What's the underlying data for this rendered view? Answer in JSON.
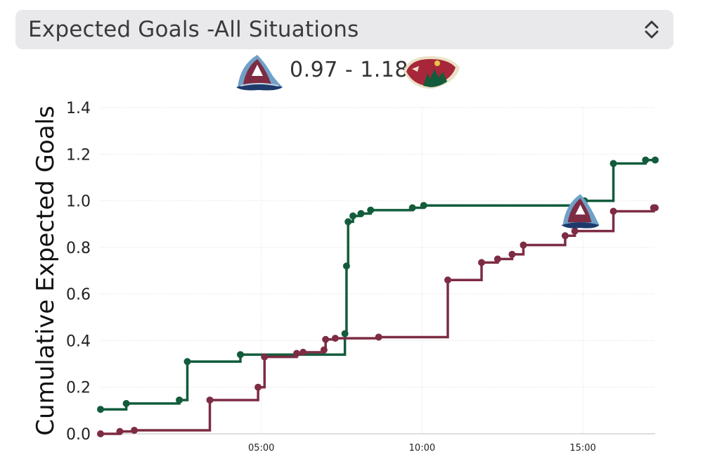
{
  "header": {
    "selector_label": "Expected Goals -All Situations"
  },
  "score": {
    "text": "0.97 - 1.18",
    "away_team": {
      "name": "Colorado Avalanche",
      "icon": "avalanche-logo-icon",
      "color": "#7d2c43"
    },
    "home_team": {
      "name": "Minnesota Wild",
      "icon": "wild-logo-icon",
      "color": "#125c3b"
    }
  },
  "chart_data": {
    "type": "line",
    "step": true,
    "ylabel": "Cumulative Expected Goals",
    "xlabel": "",
    "ylim": [
      0,
      1.4
    ],
    "yticks": [
      "0.0",
      "0.2",
      "0.4",
      "0.6",
      "0.8",
      "1.0",
      "1.2",
      "1.4"
    ],
    "xlim_minutes": [
      0,
      17.25
    ],
    "xticks": [
      {
        "value": 5,
        "label": "05:00"
      },
      {
        "value": 10,
        "label": "10:00"
      },
      {
        "value": 15,
        "label": "15:00"
      }
    ],
    "grid": true,
    "goal_marker": {
      "team": "Colorado Avalanche",
      "x": 14.9,
      "y": 0.95
    },
    "series": [
      {
        "team": "Minnesota Wild",
        "color": "#125c3b",
        "x": [
          0,
          0.8,
          2.45,
          2.7,
          4.35,
          7.6,
          7.65,
          7.7,
          7.85,
          8.1,
          8.4,
          9.7,
          10.05,
          15.05,
          15.95,
          16.95,
          17.25
        ],
        "y": [
          0.105,
          0.13,
          0.145,
          0.31,
          0.34,
          0.43,
          0.72,
          0.91,
          0.935,
          0.945,
          0.96,
          0.97,
          0.98,
          1.0,
          1.16,
          1.175,
          1.175
        ]
      },
      {
        "team": "Colorado Avalanche",
        "color": "#7d2c43",
        "x": [
          0,
          0.6,
          1.05,
          3.4,
          4.9,
          5.1,
          6.1,
          6.3,
          6.95,
          7.0,
          7.3,
          8.65,
          10.8,
          11.85,
          12.35,
          12.8,
          13.15,
          14.45,
          14.75,
          15.95,
          17.2,
          17.25
        ],
        "y": [
          0.0,
          0.01,
          0.015,
          0.145,
          0.2,
          0.33,
          0.345,
          0.35,
          0.36,
          0.405,
          0.41,
          0.415,
          0.66,
          0.735,
          0.75,
          0.77,
          0.81,
          0.85,
          0.87,
          0.955,
          0.97,
          0.97
        ]
      }
    ]
  }
}
